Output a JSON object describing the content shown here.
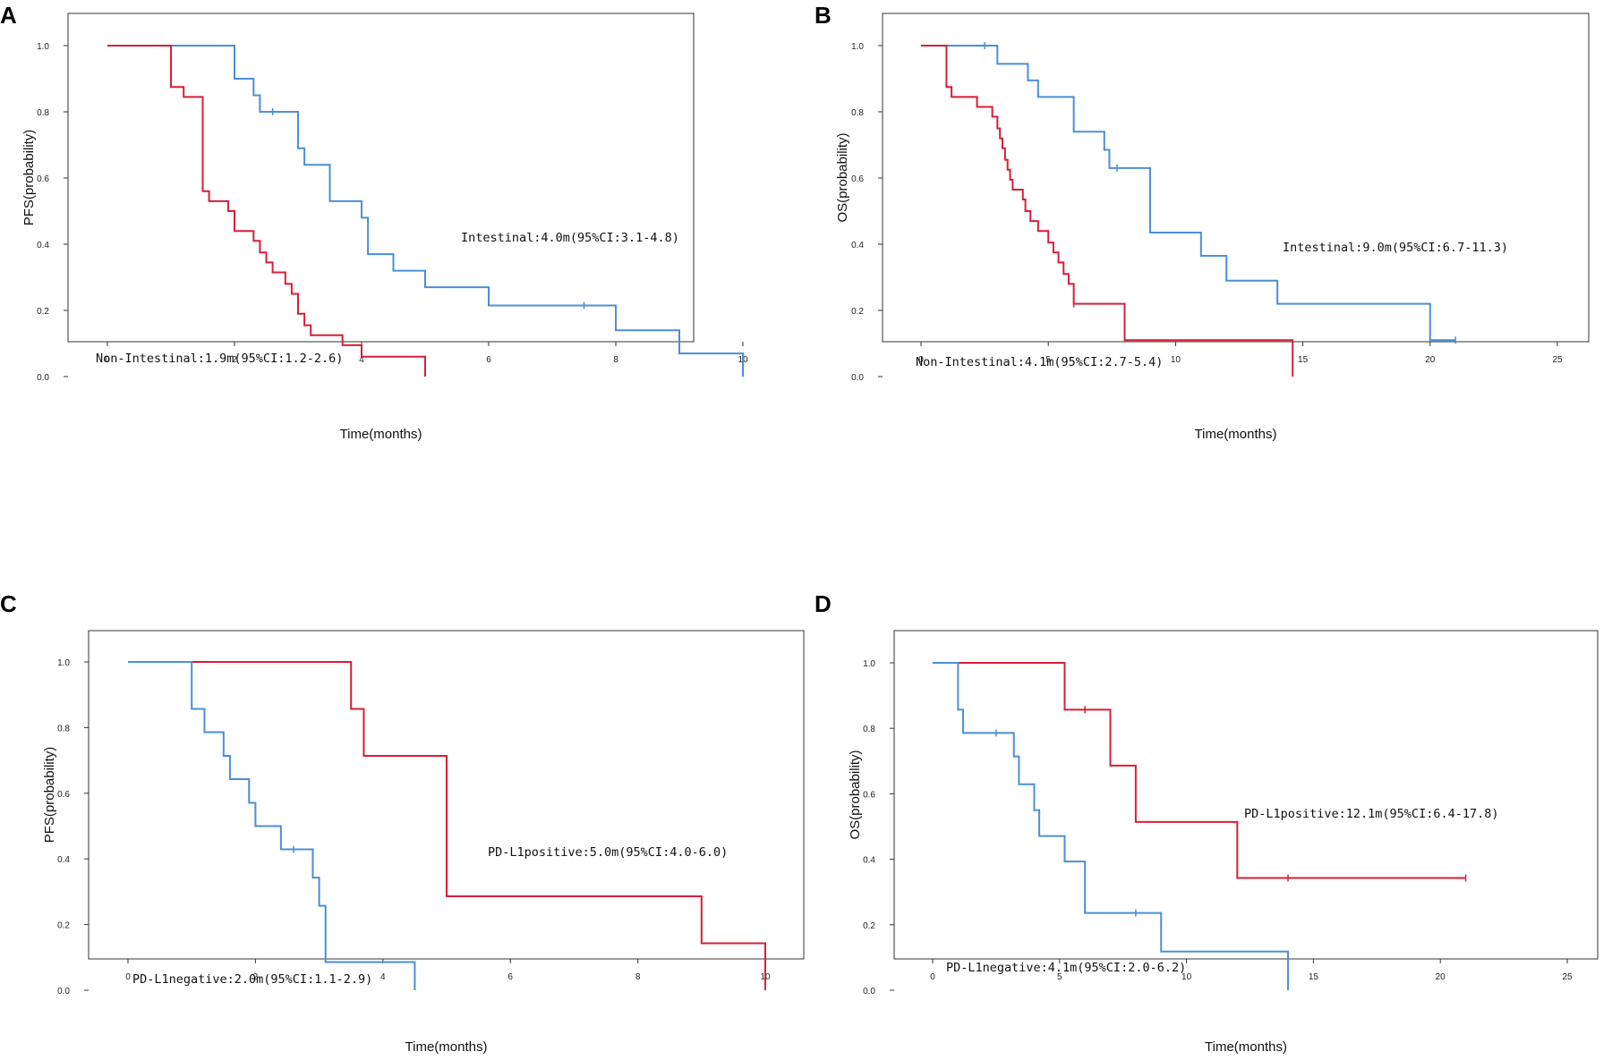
{
  "colors": {
    "red": "#d81e3a",
    "blue": "#4a8fd6"
  },
  "chart_data": [
    {
      "panel": "A",
      "type": "line",
      "subtype": "kaplan-meier",
      "xlabel": "Time(months)",
      "ylabel": "PFS(probability)",
      "xlim": [
        0,
        10
      ],
      "ylim": [
        0,
        1
      ],
      "xticks": [
        "0",
        "2",
        "4",
        "6",
        "8",
        "10"
      ],
      "yticks": [
        "0.0",
        "0.2",
        "0.4",
        "0.6",
        "0.8",
        "1.0"
      ],
      "series": [
        {
          "name": "Intestinal",
          "color": "blue",
          "label": "Intestinal:4.0m(95%CI:3.1-4.8)",
          "steps": [
            [
              0,
              1.0
            ],
            [
              2.0,
              0.9
            ],
            [
              2.3,
              0.85
            ],
            [
              2.4,
              0.8
            ],
            [
              3.0,
              0.69
            ],
            [
              3.1,
              0.64
            ],
            [
              3.5,
              0.53
            ],
            [
              4.0,
              0.48
            ],
            [
              4.1,
              0.37
            ],
            [
              4.5,
              0.32
            ],
            [
              5.0,
              0.27
            ],
            [
              6.0,
              0.215
            ],
            [
              8.0,
              0.14
            ],
            [
              9.0,
              0.07
            ],
            [
              10.0,
              0.0
            ]
          ],
          "end": 10.0,
          "censors": [
            [
              2.6,
              0.8
            ],
            [
              7.5,
              0.215
            ]
          ]
        },
        {
          "name": "Non-Intestinal",
          "color": "red",
          "label": "Non-Intestinal:1.9m(95%CI:1.2-2.6)",
          "steps": [
            [
              0,
              1.0
            ],
            [
              1.0,
              0.875
            ],
            [
              1.2,
              0.845
            ],
            [
              1.5,
              0.56
            ],
            [
              1.6,
              0.53
            ],
            [
              1.9,
              0.5
            ],
            [
              2.0,
              0.44
            ],
            [
              2.3,
              0.41
            ],
            [
              2.4,
              0.375
            ],
            [
              2.5,
              0.345
            ],
            [
              2.6,
              0.315
            ],
            [
              2.8,
              0.28
            ],
            [
              2.9,
              0.25
            ],
            [
              3.0,
              0.19
            ],
            [
              3.1,
              0.155
            ],
            [
              3.2,
              0.125
            ],
            [
              3.7,
              0.095
            ],
            [
              4.0,
              0.06
            ],
            [
              5.0,
              0.0
            ]
          ],
          "end": 5.0,
          "censors": []
        }
      ]
    },
    {
      "panel": "B",
      "type": "line",
      "subtype": "kaplan-meier",
      "xlabel": "Time(months)",
      "ylabel": "OS(probability)",
      "xlim": [
        0,
        25
      ],
      "ylim": [
        0,
        1
      ],
      "xticks": [
        "0",
        "5",
        "10",
        "15",
        "20",
        "25"
      ],
      "yticks": [
        "0.0",
        "0.2",
        "0.4",
        "0.6",
        "0.8",
        "1.0"
      ],
      "series": [
        {
          "name": "Intestinal",
          "color": "blue",
          "label": "Intestinal:9.0m(95%CI:6.7-11.3)",
          "steps": [
            [
              0,
              1.0
            ],
            [
              3.0,
              0.945
            ],
            [
              4.2,
              0.895
            ],
            [
              4.6,
              0.845
            ],
            [
              6.0,
              0.74
            ],
            [
              7.2,
              0.685
            ],
            [
              7.4,
              0.63
            ],
            [
              9.0,
              0.435
            ],
            [
              11.0,
              0.365
            ],
            [
              12.0,
              0.29
            ],
            [
              14.0,
              0.22
            ],
            [
              20.0,
              0.11
            ]
          ],
          "end": 21.0,
          "censors": [
            [
              2.5,
              1.0
            ],
            [
              7.7,
              0.63
            ],
            [
              21.0,
              0.11
            ]
          ]
        },
        {
          "name": "Non-Intestinal",
          "color": "red",
          "label": "Non-Intestinal:4.1m(95%CI:2.7-5.4)",
          "steps": [
            [
              0,
              1.0
            ],
            [
              1.0,
              0.875
            ],
            [
              1.2,
              0.845
            ],
            [
              2.2,
              0.815
            ],
            [
              2.8,
              0.785
            ],
            [
              3.0,
              0.75
            ],
            [
              3.1,
              0.72
            ],
            [
              3.2,
              0.69
            ],
            [
              3.3,
              0.655
            ],
            [
              3.4,
              0.625
            ],
            [
              3.5,
              0.595
            ],
            [
              3.6,
              0.565
            ],
            [
              4.0,
              0.535
            ],
            [
              4.1,
              0.5
            ],
            [
              4.3,
              0.47
            ],
            [
              4.6,
              0.44
            ],
            [
              5.0,
              0.405
            ],
            [
              5.2,
              0.375
            ],
            [
              5.4,
              0.345
            ],
            [
              5.6,
              0.31
            ],
            [
              5.8,
              0.28
            ],
            [
              6.0,
              0.22
            ],
            [
              8.0,
              0.11
            ],
            [
              14.6,
              0.0
            ]
          ],
          "end": 14.6,
          "censors": [
            [
              6.0,
              0.22
            ]
          ]
        }
      ]
    },
    {
      "panel": "C",
      "type": "line",
      "subtype": "kaplan-meier",
      "xlabel": "Time(months)",
      "ylabel": "PFS(probability)",
      "xlim": [
        0,
        10
      ],
      "ylim": [
        0,
        1
      ],
      "xticks": [
        "0",
        "2",
        "4",
        "6",
        "8",
        "10"
      ],
      "yticks": [
        "0.0",
        "0.2",
        "0.4",
        "0.6",
        "0.8",
        "1.0"
      ],
      "series": [
        {
          "name": "PD-L1positive",
          "color": "red",
          "label": "PD-L1positive:5.0m(95%CI:4.0-6.0)",
          "steps": [
            [
              0,
              1.0
            ],
            [
              3.5,
              0.857
            ],
            [
              3.7,
              0.714
            ],
            [
              5.0,
              0.286
            ],
            [
              9.0,
              0.143
            ],
            [
              10.0,
              0.0
            ]
          ],
          "end": 10.0,
          "censors": []
        },
        {
          "name": "PD-L1negative",
          "color": "blue",
          "label": "PD-L1negative:2.0m(95%CI:1.1-2.9)",
          "steps": [
            [
              0,
              1.0
            ],
            [
              1.0,
              0.857
            ],
            [
              1.2,
              0.786
            ],
            [
              1.5,
              0.714
            ],
            [
              1.6,
              0.643
            ],
            [
              1.9,
              0.571
            ],
            [
              2.0,
              0.5
            ],
            [
              2.4,
              0.429
            ],
            [
              2.9,
              0.343
            ],
            [
              3.0,
              0.257
            ],
            [
              3.1,
              0.086
            ],
            [
              4.5,
              0.0
            ]
          ],
          "end": 4.5,
          "censors": [
            [
              2.6,
              0.429
            ]
          ]
        }
      ]
    },
    {
      "panel": "D",
      "type": "line",
      "subtype": "kaplan-meier",
      "xlabel": "Time(months)",
      "ylabel": "OS(probability)",
      "xlim": [
        0,
        25
      ],
      "ylim": [
        0,
        1
      ],
      "xticks": [
        "0",
        "5",
        "10",
        "15",
        "20",
        "25"
      ],
      "yticks": [
        "0.0",
        "0.2",
        "0.4",
        "0.6",
        "0.8",
        "1.0"
      ],
      "series": [
        {
          "name": "PD-L1positive",
          "color": "red",
          "label": "PD-L1positive:12.1m(95%CI:6.4-17.8)",
          "steps": [
            [
              0,
              1.0
            ],
            [
              5.2,
              0.857
            ],
            [
              7.0,
              0.686
            ],
            [
              8.0,
              0.514
            ],
            [
              12.0,
              0.343
            ]
          ],
          "end": 21.0,
          "censors": [
            [
              6.0,
              0.857
            ],
            [
              14.0,
              0.343
            ],
            [
              21.0,
              0.343
            ]
          ]
        },
        {
          "name": "PD-L1negative",
          "color": "blue",
          "label": "PD-L1negative:4.1m(95%CI:2.0-6.2)",
          "steps": [
            [
              0,
              1.0
            ],
            [
              1.0,
              0.857
            ],
            [
              1.2,
              0.786
            ],
            [
              3.2,
              0.714
            ],
            [
              3.4,
              0.629
            ],
            [
              4.0,
              0.55
            ],
            [
              4.2,
              0.471
            ],
            [
              5.2,
              0.393
            ],
            [
              6.0,
              0.236
            ],
            [
              9.0,
              0.118
            ],
            [
              14.0,
              0.0
            ]
          ],
          "end": 14.0,
          "censors": [
            [
              2.5,
              0.786
            ],
            [
              8.0,
              0.236
            ]
          ]
        }
      ]
    }
  ]
}
